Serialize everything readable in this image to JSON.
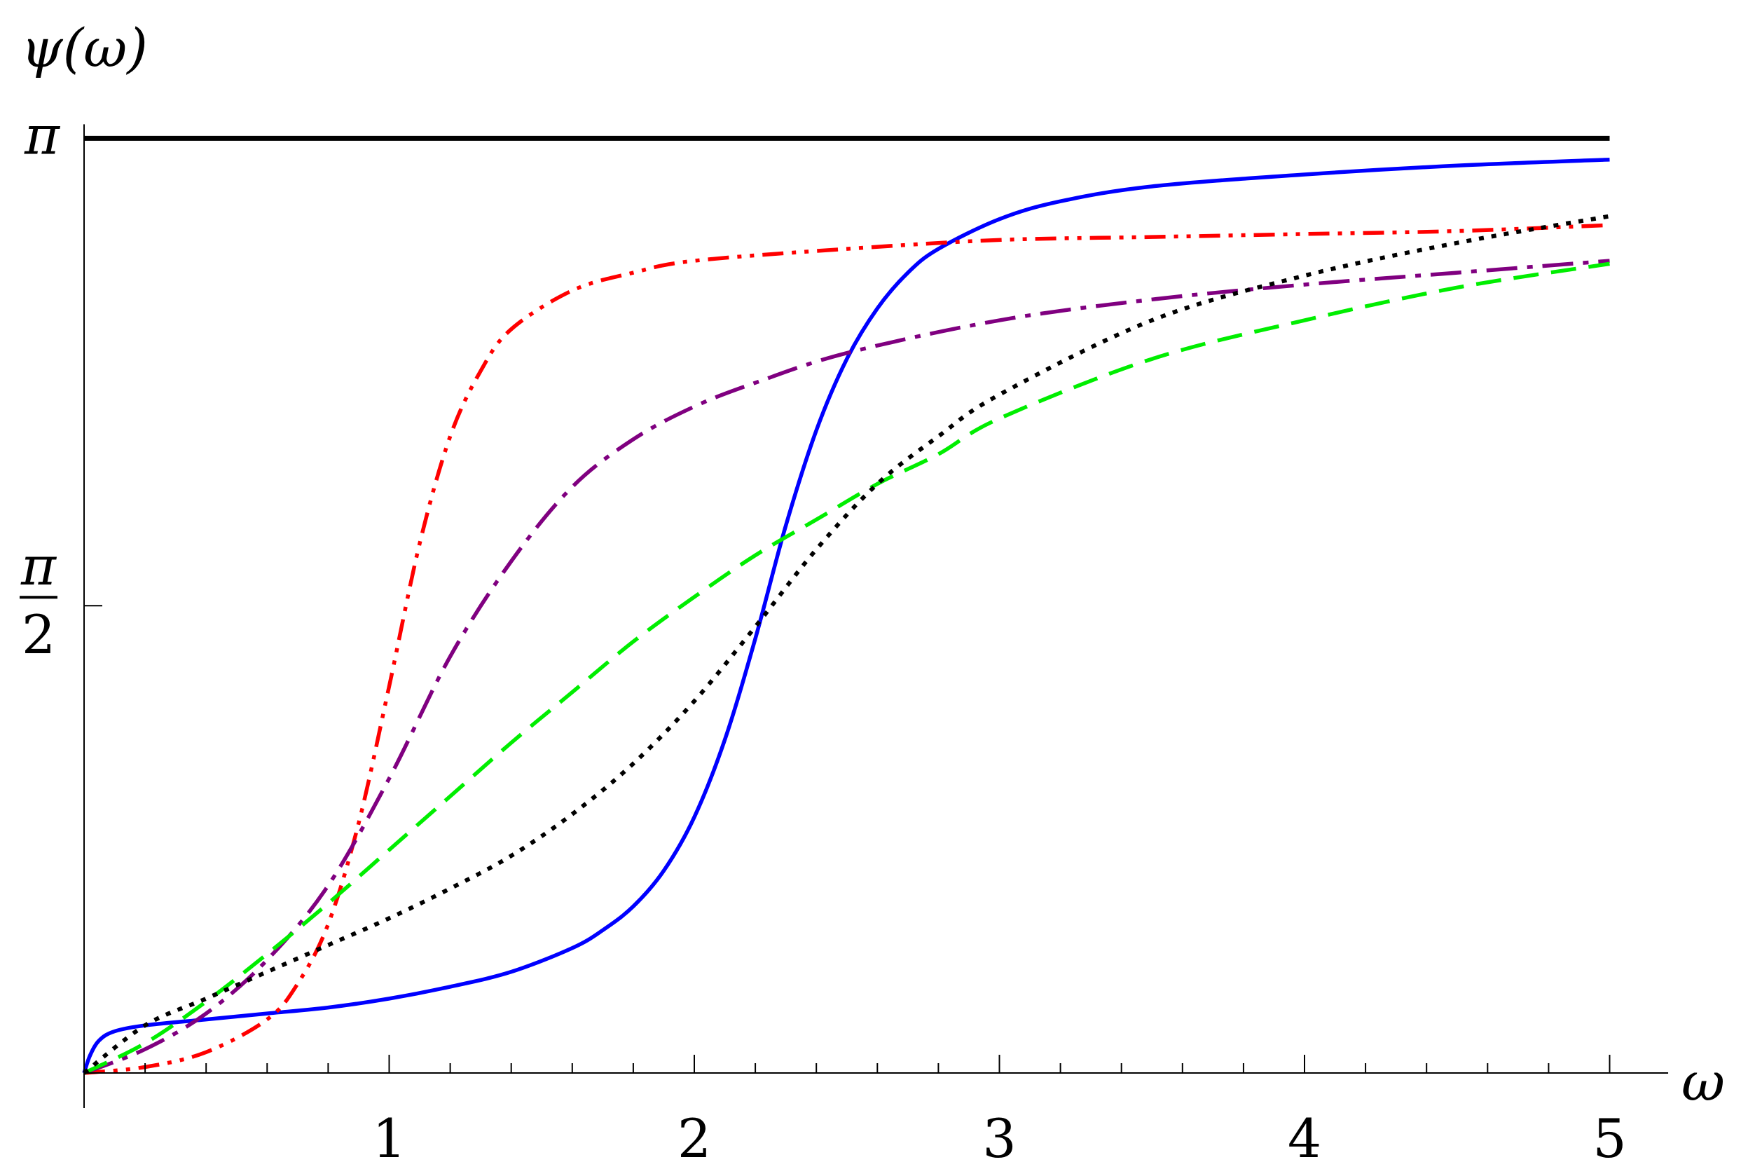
{
  "chart_data": {
    "type": "line",
    "title": "",
    "xlabel": "ω",
    "ylabel": "ψ(ω)",
    "xlim": [
      0,
      5.1
    ],
    "ylim": [
      0,
      3.1416
    ],
    "x_ticks": [
      {
        "value": 1,
        "label": "1"
      },
      {
        "value": 2,
        "label": "2"
      },
      {
        "value": 3,
        "label": "3"
      },
      {
        "value": 4,
        "label": "4"
      },
      {
        "value": 5,
        "label": "5"
      }
    ],
    "x_minor_step": 0.2,
    "y_ticks": [
      {
        "value": 1.5708,
        "label_top": "π",
        "label_bottom": "2",
        "fraction": true
      },
      {
        "value": 3.1416,
        "label_top": "π",
        "fraction": false
      }
    ],
    "grid": false,
    "legend": "none",
    "series": [
      {
        "color": "#000000",
        "style": "solid-thick",
        "x": [
          0,
          5
        ],
        "y": [
          3.1416,
          3.1416
        ]
      },
      {
        "color": "#0000ff",
        "style": "solid",
        "x": [
          0,
          0.02,
          0.05,
          0.1,
          0.2,
          0.4,
          0.6,
          0.8,
          1.0,
          1.2,
          1.4,
          1.6,
          1.7,
          1.8,
          1.9,
          2.0,
          2.1,
          2.2,
          2.3,
          2.4,
          2.5,
          2.6,
          2.7,
          2.8,
          3.0,
          3.2,
          3.5,
          4.0,
          4.5,
          5.0
        ],
        "y": [
          0.0,
          0.06,
          0.11,
          0.14,
          0.16,
          0.18,
          0.2,
          0.22,
          0.25,
          0.29,
          0.34,
          0.42,
          0.48,
          0.56,
          0.68,
          0.86,
          1.12,
          1.46,
          1.84,
          2.16,
          2.4,
          2.57,
          2.69,
          2.77,
          2.87,
          2.93,
          2.98,
          3.02,
          3.05,
          3.07
        ]
      },
      {
        "color": "#ff0000",
        "style": "dash-dot-dot",
        "x": [
          0,
          0.2,
          0.4,
          0.6,
          0.7,
          0.8,
          0.9,
          1.0,
          1.1,
          1.2,
          1.3,
          1.4,
          1.6,
          1.8,
          2.0,
          2.5,
          3.0,
          3.5,
          4.0,
          4.5,
          5.0
        ],
        "y": [
          0.0,
          0.02,
          0.07,
          0.18,
          0.3,
          0.5,
          0.84,
          1.3,
          1.78,
          2.14,
          2.36,
          2.5,
          2.63,
          2.69,
          2.73,
          2.77,
          2.8,
          2.81,
          2.82,
          2.83,
          2.85
        ]
      },
      {
        "color": "#800080",
        "style": "long-dash-dot",
        "x": [
          0,
          0.2,
          0.4,
          0.6,
          0.8,
          1.0,
          1.2,
          1.4,
          1.6,
          1.8,
          2.0,
          2.2,
          2.5,
          3.0,
          3.5,
          4.0,
          4.5,
          5.0
        ],
        "y": [
          0.0,
          0.08,
          0.2,
          0.38,
          0.63,
          0.99,
          1.4,
          1.72,
          1.97,
          2.13,
          2.24,
          2.32,
          2.42,
          2.53,
          2.6,
          2.65,
          2.69,
          2.73
        ]
      },
      {
        "color": "#00ee00",
        "style": "dashed",
        "x": [
          0,
          0.2,
          0.4,
          0.6,
          0.8,
          1.0,
          1.2,
          1.4,
          1.6,
          1.8,
          2.0,
          2.2,
          2.4,
          2.6,
          2.8,
          3.0,
          3.5,
          4.0,
          4.5,
          5.0
        ],
        "y": [
          0.0,
          0.1,
          0.24,
          0.4,
          0.57,
          0.75,
          0.93,
          1.11,
          1.28,
          1.45,
          1.6,
          1.74,
          1.86,
          1.98,
          2.08,
          2.2,
          2.4,
          2.53,
          2.64,
          2.72
        ]
      },
      {
        "color": "#000000",
        "style": "dotted",
        "x": [
          0,
          0.2,
          0.4,
          0.6,
          0.8,
          1.0,
          1.2,
          1.4,
          1.6,
          1.8,
          2.0,
          2.2,
          2.4,
          2.6,
          2.8,
          3.0,
          3.5,
          4.0,
          4.5,
          5.0
        ],
        "y": [
          0.0,
          0.16,
          0.25,
          0.34,
          0.43,
          0.52,
          0.62,
          0.73,
          0.87,
          1.04,
          1.25,
          1.5,
          1.76,
          1.98,
          2.14,
          2.28,
          2.53,
          2.68,
          2.79,
          2.88
        ]
      }
    ]
  }
}
